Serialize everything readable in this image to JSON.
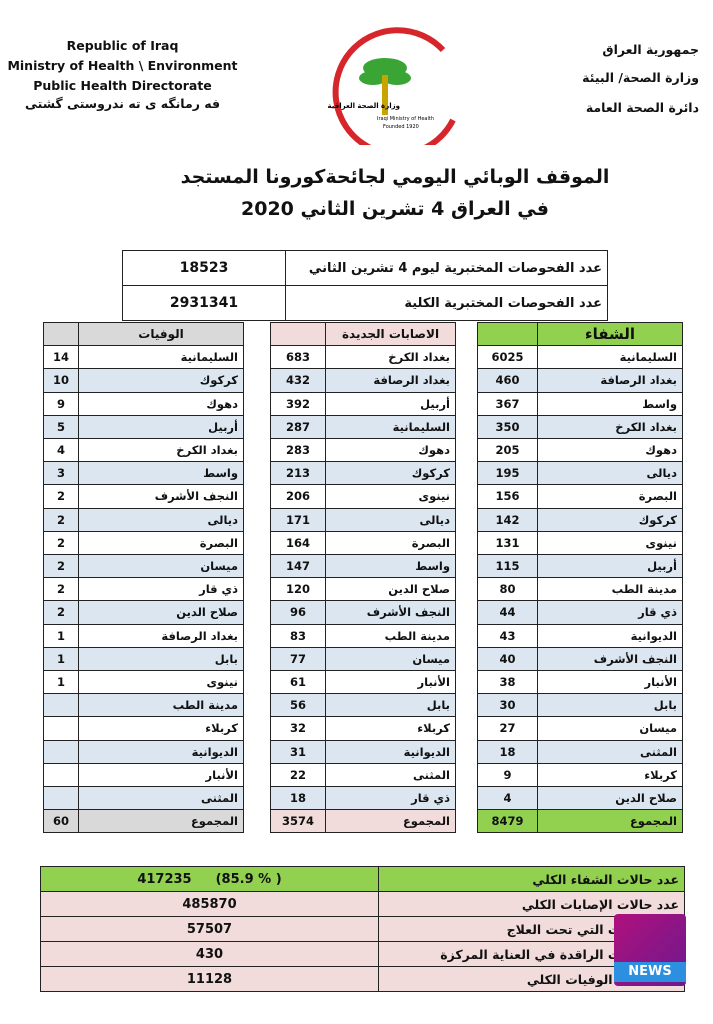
{
  "header": {
    "left_lines": [
      "Republic of Iraq",
      "Ministry of Health \\ Environment",
      "Public Health Directorate",
      "فه رمانگه ى ته ندروستى گشتى"
    ],
    "right_lines": [
      "جمهورية العراق",
      "وزارة الصحة/ البيئة",
      "دائرة الصحة العامة"
    ],
    "logo_text": [
      "وزارة الصحة العراقية",
      "Iraqi Ministry of Health",
      "Founded 1920"
    ]
  },
  "title": [
    "الموقف الوبائي اليومي لجائحةكورونا المستجد",
    "في العراق  4  تشرين الثاني 2020"
  ],
  "tests": [
    {
      "label": "عدد الفحوصات المختبرية  ليوم 4 تشرين الثاني",
      "value": 18523
    },
    {
      "label": "عدد الفحوصات المختبرية الكلية",
      "value": 2931341
    }
  ],
  "recoveries": {
    "title": "الشفاء",
    "rows": [
      {
        "name": "السليمانية",
        "value": 6025
      },
      {
        "name": "بغداد الرصافة",
        "value": 460
      },
      {
        "name": "واسط",
        "value": 367
      },
      {
        "name": "بغداد الكرخ",
        "value": 350
      },
      {
        "name": "دهوك",
        "value": 205
      },
      {
        "name": "ديالى",
        "value": 195
      },
      {
        "name": "البصرة",
        "value": 156
      },
      {
        "name": "كركوك",
        "value": 142
      },
      {
        "name": "نينوى",
        "value": 131
      },
      {
        "name": "أربيل",
        "value": 115
      },
      {
        "name": "مدينة الطب",
        "value": 80
      },
      {
        "name": "ذي قار",
        "value": 44
      },
      {
        "name": "الديوانية",
        "value": 43
      },
      {
        "name": "النجف الأشرف",
        "value": 40
      },
      {
        "name": "الأنبار",
        "value": 38
      },
      {
        "name": "بابل",
        "value": 30
      },
      {
        "name": "ميسان",
        "value": 27
      },
      {
        "name": "المثنى",
        "value": 18
      },
      {
        "name": "كربلاء",
        "value": 9
      },
      {
        "name": "صلاح الدين",
        "value": 4
      }
    ],
    "total": {
      "label": "المجموع",
      "value": 8479
    }
  },
  "new_cases": {
    "title": "الاصابات الجديدة",
    "rows": [
      {
        "name": "بغداد الكرخ",
        "value": 683
      },
      {
        "name": "بغداد الرصافة",
        "value": 432
      },
      {
        "name": "أربيل",
        "value": 392
      },
      {
        "name": "السليمانية",
        "value": 287
      },
      {
        "name": "دهوك",
        "value": 283
      },
      {
        "name": "كركوك",
        "value": 213
      },
      {
        "name": "نينوى",
        "value": 206
      },
      {
        "name": "ديالى",
        "value": 171
      },
      {
        "name": "البصرة",
        "value": 164
      },
      {
        "name": "واسط",
        "value": 147
      },
      {
        "name": "صلاح الدين",
        "value": 120
      },
      {
        "name": "النجف الأشرف",
        "value": 96
      },
      {
        "name": "مدينة الطب",
        "value": 83
      },
      {
        "name": "ميسان",
        "value": 77
      },
      {
        "name": "الأنبار",
        "value": 61
      },
      {
        "name": "بابل",
        "value": 56
      },
      {
        "name": "كربلاء",
        "value": 32
      },
      {
        "name": "الديوانية",
        "value": 31
      },
      {
        "name": "المثنى",
        "value": 22
      },
      {
        "name": "ذي قار",
        "value": 18
      }
    ],
    "total": {
      "label": "المجموع",
      "value": 3574
    }
  },
  "deaths": {
    "title": "الوفيات",
    "rows": [
      {
        "name": "السليمانية",
        "value": 14
      },
      {
        "name": "كركوك",
        "value": 10
      },
      {
        "name": "دهوك",
        "value": 9
      },
      {
        "name": "أربيل",
        "value": 5
      },
      {
        "name": "بغداد الكرخ",
        "value": 4
      },
      {
        "name": "واسط",
        "value": 3
      },
      {
        "name": "النجف الأشرف",
        "value": 2
      },
      {
        "name": "ديالى",
        "value": 2
      },
      {
        "name": "البصرة",
        "value": 2
      },
      {
        "name": "ميسان",
        "value": 2
      },
      {
        "name": "ذي قار",
        "value": 2
      },
      {
        "name": "صلاح الدين",
        "value": 2
      },
      {
        "name": "بغداد الرصافة",
        "value": 1
      },
      {
        "name": "بابل",
        "value": 1
      },
      {
        "name": "نينوى",
        "value": 1
      },
      {
        "name": "مدينة الطب"
      },
      {
        "name": "كربلاء"
      },
      {
        "name": "الديوانية"
      },
      {
        "name": "الأنبار"
      },
      {
        "name": "المثنى"
      }
    ],
    "total": {
      "label": "المجموع",
      "value": 60
    }
  },
  "summary": [
    {
      "label": "عدد حالات الشفاء الكلي",
      "value": 417235,
      "note": "(85.9 % )"
    },
    {
      "label": "عدد حالات الإصابات الكلي",
      "value": 485870
    },
    {
      "label": "عدد الحالات التي تحت العلاج",
      "value": 57507
    },
    {
      "label": "عدد الحالات الراقدة في العناية المركزة",
      "value": 430
    },
    {
      "label": "عدد حالات الوفيات الكلي",
      "value": 11128
    }
  ],
  "watermark": "NEWS"
}
